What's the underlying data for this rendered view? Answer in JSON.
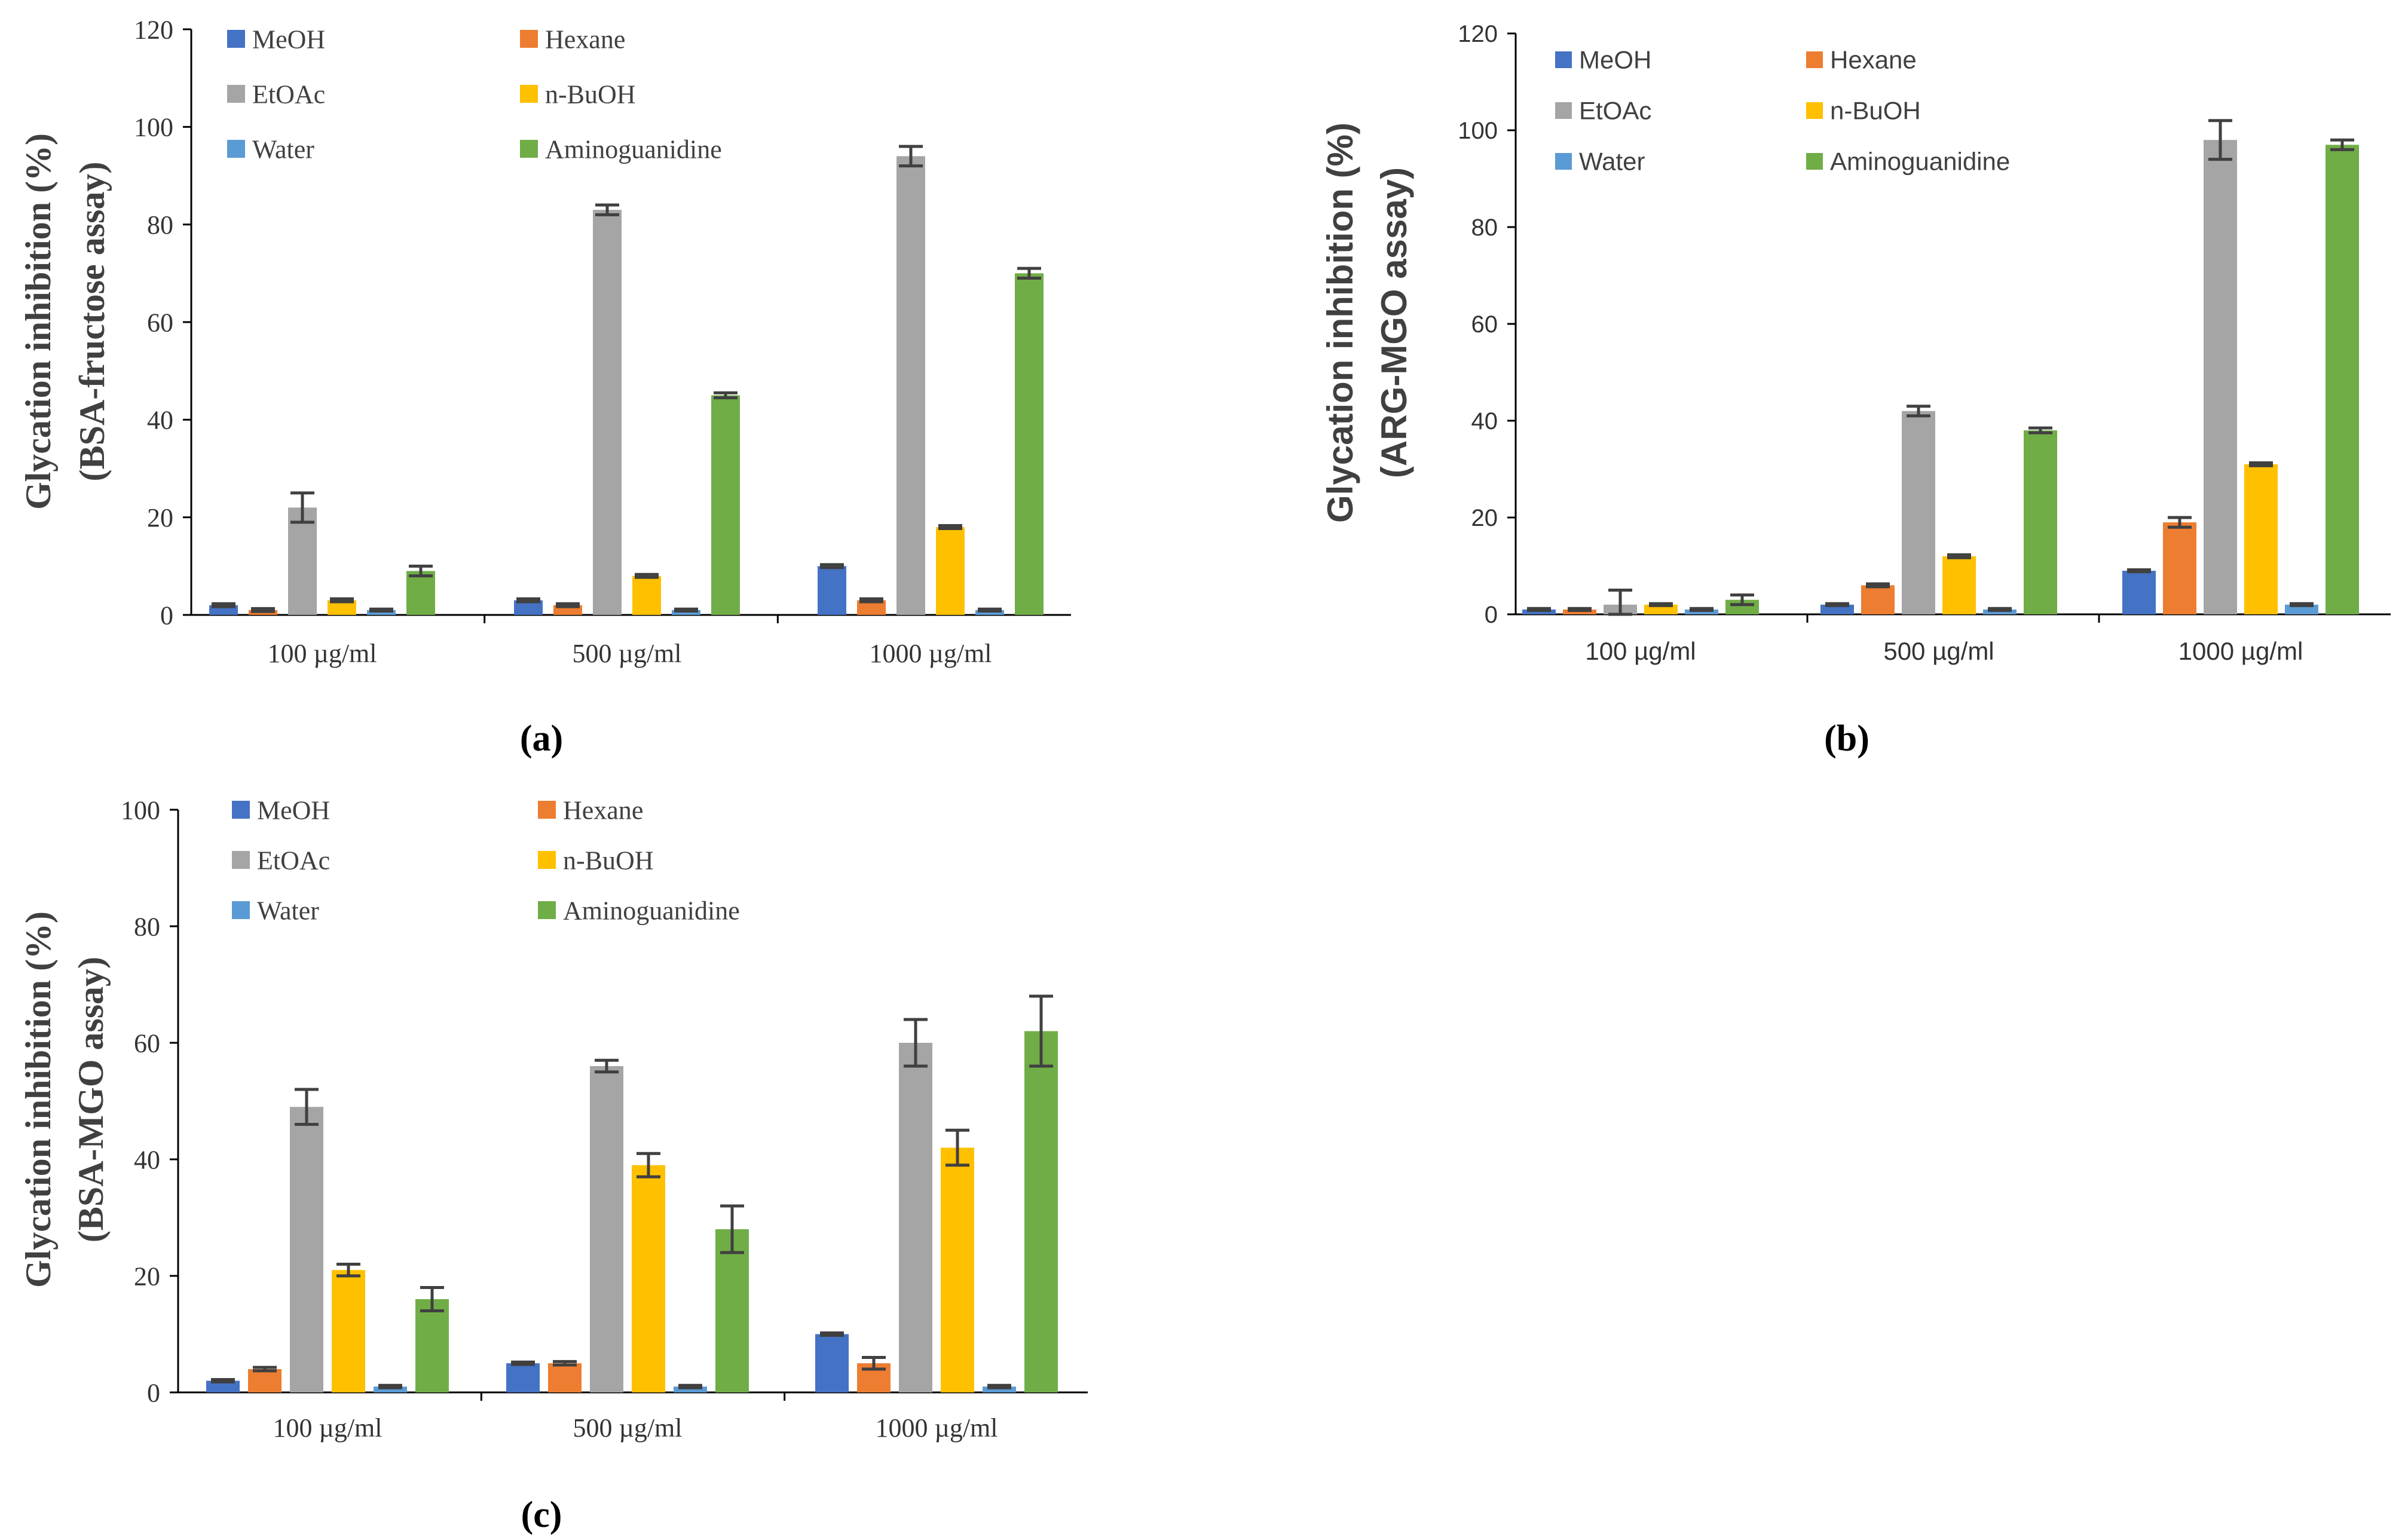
{
  "figure": {
    "colors": {
      "MeOH": "#4472c4",
      "Hexane": "#ed7d31",
      "EtOAc": "#a5a5a5",
      "n-BuOH": "#ffc000",
      "Water": "#5b9bd5",
      "Aminoguanidine": "#70ad47",
      "axis": "#000000",
      "errorbar": "#404040"
    }
  },
  "chart_data": [
    {
      "id": "a",
      "type": "bar",
      "panel_label": "(a)",
      "ylabel": [
        "Glycation inhibition (%)",
        "(BSA-fructose assay)"
      ],
      "xlabel": "",
      "ylim": [
        0,
        120
      ],
      "yticks": [
        0,
        20,
        40,
        60,
        80,
        100,
        120
      ],
      "grid": false,
      "legend": "top-left",
      "categories": [
        "100 µg/ml",
        "500 µg/ml",
        "1000 µg/ml"
      ],
      "series": [
        {
          "name": "MeOH",
          "values": [
            2,
            3,
            10
          ],
          "errors": [
            0.3,
            0.3,
            0.3
          ]
        },
        {
          "name": "Hexane",
          "values": [
            1,
            2,
            3
          ],
          "errors": [
            0.3,
            0.3,
            0.3
          ]
        },
        {
          "name": "EtOAc",
          "values": [
            22,
            83,
            94
          ],
          "errors": [
            3,
            1,
            2
          ]
        },
        {
          "name": "n-BuOH",
          "values": [
            3,
            8,
            18
          ],
          "errors": [
            0.3,
            0.3,
            0.3
          ]
        },
        {
          "name": "Water",
          "values": [
            1,
            1,
            1
          ],
          "errors": [
            0.2,
            0.2,
            0.2
          ]
        },
        {
          "name": "Aminoguanidine",
          "values": [
            9,
            45,
            70
          ],
          "errors": [
            1,
            0.5,
            1
          ]
        }
      ]
    },
    {
      "id": "b",
      "type": "bar",
      "panel_label": "(b)",
      "ylabel": [
        "Glycation inhibition (%)",
        "(ARG-MGO assay)"
      ],
      "xlabel": "",
      "ylim": [
        0,
        120
      ],
      "yticks": [
        0,
        20,
        40,
        60,
        80,
        100,
        120
      ],
      "grid": false,
      "legend": "top-left",
      "categories": [
        "100 µg/ml",
        "500 µg/ml",
        "1000 µg/ml"
      ],
      "series": [
        {
          "name": "MeOH",
          "values": [
            1,
            2,
            9
          ],
          "errors": [
            0.2,
            0.2,
            0.2
          ]
        },
        {
          "name": "Hexane",
          "values": [
            1,
            6,
            19
          ],
          "errors": [
            0.2,
            0.3,
            1
          ]
        },
        {
          "name": "EtOAc",
          "values": [
            2,
            42,
            98
          ],
          "errors": [
            3,
            1,
            4
          ]
        },
        {
          "name": "n-BuOH",
          "values": [
            2,
            12,
            31
          ],
          "errors": [
            0.2,
            0.3,
            0.3
          ]
        },
        {
          "name": "Water",
          "values": [
            1,
            1,
            2
          ],
          "errors": [
            0.2,
            0.2,
            0.2
          ]
        },
        {
          "name": "Aminoguanidine",
          "values": [
            3,
            38,
            97
          ],
          "errors": [
            1,
            0.5,
            1
          ]
        }
      ]
    },
    {
      "id": "c",
      "type": "bar",
      "panel_label": "(c)",
      "ylabel": [
        "Glycation inhibition (%)",
        "(BSA-MGO assay)"
      ],
      "xlabel": "",
      "ylim": [
        0,
        100
      ],
      "yticks": [
        0,
        20,
        40,
        60,
        80,
        100
      ],
      "grid": false,
      "legend": "top-left",
      "categories": [
        "100 µg/ml",
        "500 µg/ml",
        "1000 µg/ml"
      ],
      "series": [
        {
          "name": "MeOH",
          "values": [
            2,
            5,
            10
          ],
          "errors": [
            0.2,
            0.2,
            0.2
          ]
        },
        {
          "name": "Hexane",
          "values": [
            4,
            5,
            5
          ],
          "errors": [
            0.3,
            0.3,
            1
          ]
        },
        {
          "name": "EtOAc",
          "values": [
            49,
            56,
            60
          ],
          "errors": [
            3,
            1,
            4
          ]
        },
        {
          "name": "n-BuOH",
          "values": [
            21,
            39,
            42
          ],
          "errors": [
            1,
            2,
            3
          ]
        },
        {
          "name": "Water",
          "values": [
            1,
            1,
            1
          ],
          "errors": [
            0.2,
            0.2,
            0.2
          ]
        },
        {
          "name": "Aminoguanidine",
          "values": [
            16,
            28,
            62
          ],
          "errors": [
            2,
            4,
            6
          ]
        }
      ]
    }
  ]
}
